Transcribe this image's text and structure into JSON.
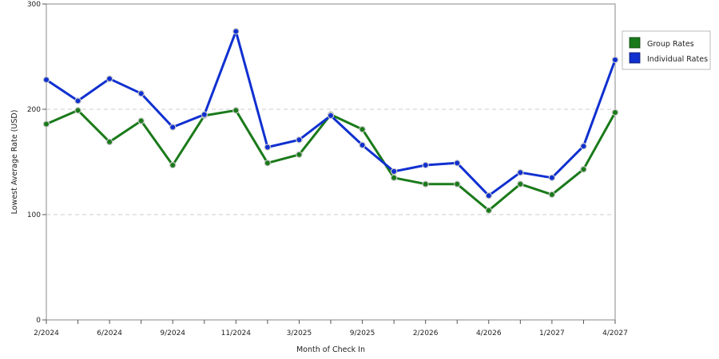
{
  "chart_data": {
    "type": "line",
    "xlabel": "Month of Check In",
    "ylabel": "Lowest Average Rate (USD)",
    "ylim": [
      0,
      300
    ],
    "yticks": [
      0,
      100,
      200,
      300
    ],
    "grid": "dashed horizontal at 100 and 200",
    "legend_position": "top-right",
    "x_tick_labels": [
      "2/2024",
      "6/2024",
      "9/2024",
      "11/2024",
      "3/2025",
      "9/2025",
      "2/2026",
      "4/2026",
      "1/2027",
      "4/2027"
    ],
    "series": [
      {
        "name": "Group Rates",
        "color": "#1a7a1a",
        "values": [
          186,
          199,
          169,
          189,
          147,
          194,
          199,
          149,
          157,
          195,
          181,
          135,
          129,
          129,
          104,
          129,
          119,
          143,
          197
        ]
      },
      {
        "name": "Individual Rates",
        "color": "#1030d0",
        "values": [
          228,
          208,
          229,
          215,
          183,
          195,
          274,
          164,
          171,
          194,
          166,
          141,
          147,
          149,
          118,
          140,
          135,
          165,
          247
        ]
      }
    ]
  }
}
